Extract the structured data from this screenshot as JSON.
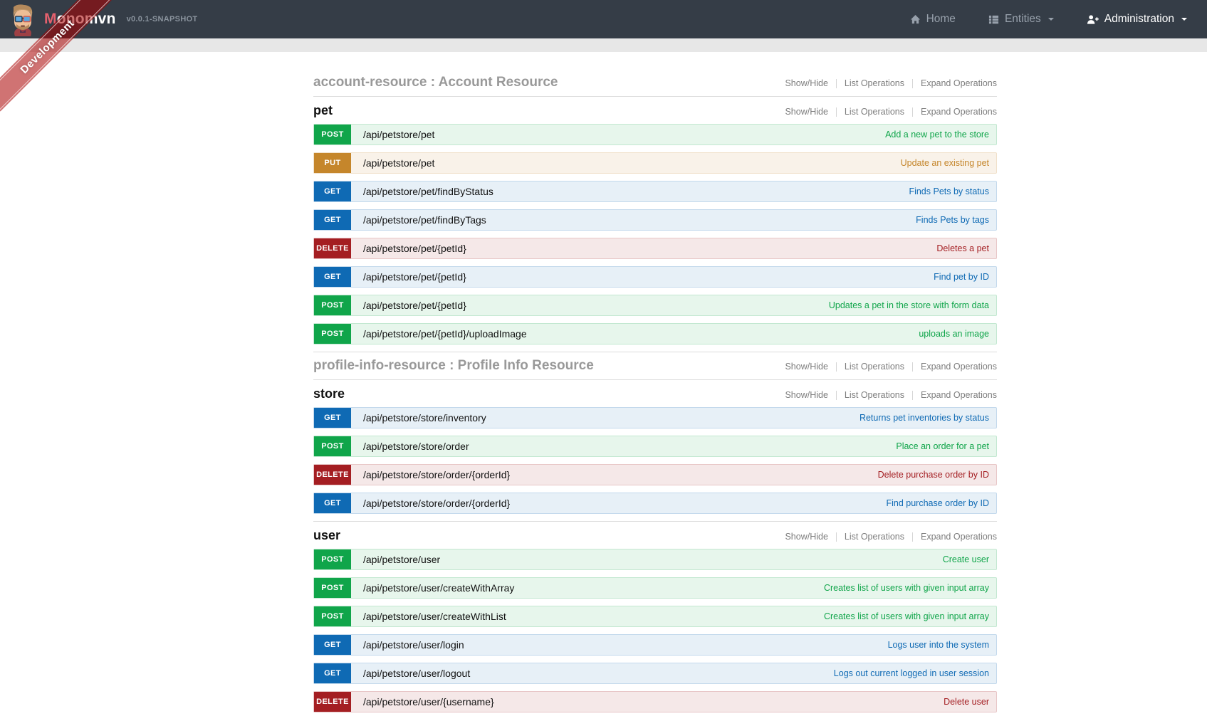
{
  "navbar": {
    "brand": {
      "first_letter": "M",
      "rest": "onomvn",
      "version": "v0.0.1-SNAPSHOT"
    },
    "items": [
      {
        "label": "Home",
        "icon": "home-icon",
        "caret": false,
        "active": false
      },
      {
        "label": "Entities",
        "icon": "list-icon",
        "caret": true,
        "active": false
      },
      {
        "label": "Administration",
        "icon": "user-plus-icon",
        "caret": true,
        "active": true
      }
    ]
  },
  "ribbon": {
    "label": "Development"
  },
  "section_controls": [
    "Show/Hide",
    "List Operations",
    "Expand Operations"
  ],
  "method_colors": {
    "get": "#0f6ab4",
    "post": "#10a54a",
    "put": "#c5862b",
    "delete": "#a41e22"
  },
  "sections": [
    {
      "title": "account-resource : Account Resource",
      "expanded": false,
      "operations": []
    },
    {
      "title": "pet",
      "expanded": true,
      "operations": [
        {
          "method": "POST",
          "path": "/api/petstore/pet",
          "desc": "Add a new pet to the store"
        },
        {
          "method": "PUT",
          "path": "/api/petstore/pet",
          "desc": "Update an existing pet"
        },
        {
          "method": "GET",
          "path": "/api/petstore/pet/findByStatus",
          "desc": "Finds Pets by status"
        },
        {
          "method": "GET",
          "path": "/api/petstore/pet/findByTags",
          "desc": "Finds Pets by tags"
        },
        {
          "method": "DELETE",
          "path": "/api/petstore/pet/{petId}",
          "desc": "Deletes a pet"
        },
        {
          "method": "GET",
          "path": "/api/petstore/pet/{petId}",
          "desc": "Find pet by ID"
        },
        {
          "method": "POST",
          "path": "/api/petstore/pet/{petId}",
          "desc": "Updates a pet in the store with form data"
        },
        {
          "method": "POST",
          "path": "/api/petstore/pet/{petId}/uploadImage",
          "desc": "uploads an image"
        }
      ]
    },
    {
      "title": "profile-info-resource : Profile Info Resource",
      "expanded": false,
      "operations": []
    },
    {
      "title": "store",
      "expanded": true,
      "operations": [
        {
          "method": "GET",
          "path": "/api/petstore/store/inventory",
          "desc": "Returns pet inventories by status"
        },
        {
          "method": "POST",
          "path": "/api/petstore/store/order",
          "desc": "Place an order for a pet"
        },
        {
          "method": "DELETE",
          "path": "/api/petstore/store/order/{orderId}",
          "desc": "Delete purchase order by ID"
        },
        {
          "method": "GET",
          "path": "/api/petstore/store/order/{orderId}",
          "desc": "Find purchase order by ID"
        }
      ]
    },
    {
      "title": "user",
      "expanded": true,
      "operations": [
        {
          "method": "POST",
          "path": "/api/petstore/user",
          "desc": "Create user"
        },
        {
          "method": "POST",
          "path": "/api/petstore/user/createWithArray",
          "desc": "Creates list of users with given input array"
        },
        {
          "method": "POST",
          "path": "/api/petstore/user/createWithList",
          "desc": "Creates list of users with given input array"
        },
        {
          "method": "GET",
          "path": "/api/petstore/user/login",
          "desc": "Logs user into the system"
        },
        {
          "method": "GET",
          "path": "/api/petstore/user/logout",
          "desc": "Logs out current logged in user session"
        },
        {
          "method": "DELETE",
          "path": "/api/petstore/user/{username}",
          "desc": "Delete user"
        }
      ]
    }
  ]
}
